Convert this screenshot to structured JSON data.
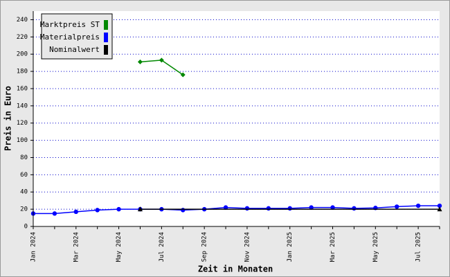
{
  "chart_data": {
    "type": "line",
    "x_label": "Zeit in Monaten",
    "y_label": "Preis in Euro",
    "categories": [
      "Jan 2024",
      null,
      "Mar 2024",
      null,
      "May 2024",
      null,
      "Jul 2024",
      null,
      "Sep 2024",
      null,
      "Nov 2024",
      null,
      "Jan 2025",
      null,
      "Mar 2025",
      null,
      "May 2025",
      null,
      "Jul 2025",
      null
    ],
    "series": [
      {
        "name": "Marktpreis ST",
        "color": "#008800",
        "marker": "diamond",
        "values": [
          null,
          null,
          null,
          null,
          null,
          191,
          193,
          176,
          null,
          null,
          null,
          null,
          null,
          null,
          null,
          null,
          null,
          null,
          null,
          null
        ]
      },
      {
        "name": "Materialpreis",
        "color": "#0000ff",
        "marker": "circle",
        "values": [
          15,
          15,
          17,
          19,
          20,
          20,
          20,
          19,
          20,
          22,
          21,
          21,
          21,
          22,
          22,
          21,
          21.5,
          23,
          24,
          24
        ]
      },
      {
        "name": "Nominalwert",
        "color": "#000000",
        "marker": "triangle",
        "values": [
          null,
          null,
          null,
          null,
          null,
          20,
          20,
          20,
          20,
          20,
          20,
          20,
          20,
          20,
          20,
          20,
          20,
          20,
          20,
          20
        ]
      }
    ],
    "ylim": [
      0,
      250
    ],
    "yticks": [
      0,
      20,
      40,
      60,
      80,
      100,
      120,
      140,
      160,
      180,
      200,
      220,
      240
    ],
    "grid": true
  }
}
